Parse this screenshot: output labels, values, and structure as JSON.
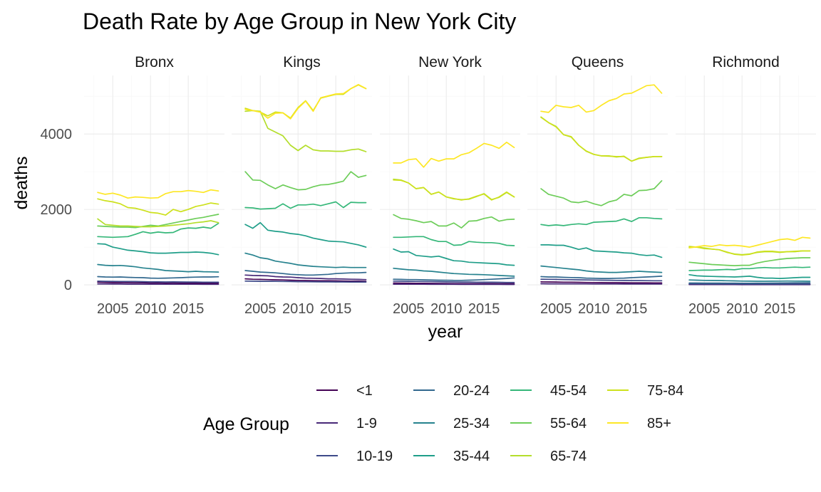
{
  "chart_data": {
    "type": "line",
    "title": "Death Rate by Age Group in New York City",
    "xlabel": "year",
    "ylabel": "deaths",
    "facets": [
      "Bronx",
      "Kings",
      "New York",
      "Queens",
      "Richmond"
    ],
    "x": [
      2003,
      2004,
      2005,
      2006,
      2007,
      2008,
      2009,
      2010,
      2011,
      2012,
      2013,
      2014,
      2015,
      2016,
      2017,
      2018,
      2019
    ],
    "xlim": [
      2001.2,
      2019.8
    ],
    "ylim": [
      -130,
      5550
    ],
    "xticks": [
      2005,
      2010,
      2015
    ],
    "yticks": [
      0,
      2000,
      4000
    ],
    "legend": {
      "title": "Age Group",
      "position": "bottom",
      "entries": [
        "<1",
        "1-9",
        "10-19",
        "20-24",
        "25-34",
        "35-44",
        "45-54",
        "55-64",
        "65-74",
        "75-84",
        "85+"
      ]
    },
    "colors": {
      "<1": "#440154",
      "1-9": "#482878",
      "10-19": "#3E4A89",
      "20-24": "#31688E",
      "25-34": "#26828E",
      "35-44": "#1F9E89",
      "45-54": "#35B779",
      "55-64": "#6DCD59",
      "65-74": "#B4DE2C",
      "75-84": "#CDE11D",
      "85+": "#FDE725"
    },
    "series": {
      "Bronx": {
        "<1": [
          70,
          65,
          60,
          62,
          58,
          55,
          55,
          50,
          52,
          48,
          50,
          48,
          45,
          48,
          45,
          45,
          45
        ],
        "1-9": [
          25,
          24,
          22,
          22,
          20,
          20,
          20,
          19,
          18,
          18,
          18,
          17,
          17,
          17,
          16,
          16,
          16
        ],
        "10-19": [
          100,
          95,
          92,
          90,
          90,
          88,
          85,
          82,
          80,
          78,
          80,
          78,
          75,
          75,
          72,
          72,
          70
        ],
        "20-24": [
          220,
          210,
          205,
          210,
          200,
          195,
          190,
          180,
          175,
          180,
          185,
          190,
          200,
          205,
          210,
          210,
          215
        ],
        "25-34": [
          540,
          520,
          510,
          515,
          500,
          480,
          450,
          430,
          410,
          380,
          370,
          360,
          350,
          360,
          350,
          345,
          340
        ],
        "35-44": [
          1090,
          1080,
          1000,
          960,
          920,
          900,
          880,
          850,
          840,
          840,
          850,
          860,
          860,
          870,
          860,
          840,
          800
        ],
        "45-54": [
          1280,
          1270,
          1260,
          1270,
          1280,
          1340,
          1410,
          1370,
          1400,
          1380,
          1390,
          1480,
          1510,
          1500,
          1530,
          1500,
          1630
        ],
        "55-64": [
          1560,
          1550,
          1540,
          1530,
          1530,
          1520,
          1550,
          1580,
          1560,
          1600,
          1640,
          1680,
          1720,
          1760,
          1790,
          1830,
          1870
        ],
        "65-74": [
          1750,
          1600,
          1580,
          1560,
          1560,
          1550,
          1540,
          1540,
          1550,
          1560,
          1580,
          1600,
          1620,
          1650,
          1670,
          1700,
          1650
        ],
        "75-84": [
          2280,
          2230,
          2200,
          2150,
          2050,
          2030,
          1980,
          1920,
          1900,
          1850,
          2000,
          1940,
          2000,
          2080,
          2120,
          2170,
          2140
        ],
        "85+": [
          2450,
          2400,
          2430,
          2380,
          2300,
          2330,
          2320,
          2300,
          2310,
          2420,
          2470,
          2470,
          2500,
          2480,
          2450,
          2520,
          2490
        ]
      },
      "Kings": {
        "<1": [
          160,
          150,
          145,
          140,
          135,
          130,
          125,
          120,
          115,
          112,
          110,
          108,
          105,
          102,
          100,
          98,
          95
        ],
        "1-9": [
          260,
          250,
          245,
          240,
          220,
          210,
          205,
          190,
          180,
          175,
          170,
          160,
          160,
          155,
          150,
          145,
          140
        ],
        "10-19": [
          100,
          98,
          95,
          95,
          92,
          90,
          88,
          85,
          83,
          82,
          80,
          80,
          78,
          78,
          76,
          75,
          75
        ],
        "20-24": [
          380,
          360,
          340,
          330,
          320,
          300,
          280,
          270,
          260,
          260,
          270,
          280,
          300,
          310,
          320,
          320,
          330
        ],
        "25-34": [
          840,
          790,
          720,
          690,
          630,
          600,
          570,
          530,
          510,
          490,
          480,
          470,
          460,
          470,
          460,
          460,
          460
        ],
        "35-44": [
          1600,
          1500,
          1650,
          1450,
          1420,
          1400,
          1360,
          1340,
          1300,
          1240,
          1200,
          1160,
          1150,
          1140,
          1100,
          1060,
          1000
        ],
        "45-54": [
          2050,
          2040,
          2010,
          2020,
          2030,
          2150,
          2030,
          2120,
          2120,
          2140,
          2100,
          2150,
          2200,
          2050,
          2190,
          2180,
          2180
        ],
        "55-64": [
          3000,
          2780,
          2770,
          2650,
          2550,
          2650,
          2580,
          2520,
          2530,
          2600,
          2650,
          2660,
          2700,
          2750,
          3000,
          2850,
          2900
        ],
        "65-74": [
          4600,
          4620,
          4600,
          4150,
          4050,
          3950,
          3700,
          3560,
          3700,
          3580,
          3550,
          3550,
          3540,
          3540,
          3580,
          3600,
          3530
        ],
        "75-84": [
          4680,
          4620,
          4580,
          4480,
          4580,
          4560,
          4420,
          4700,
          4880,
          4620,
          4950,
          5000,
          5050,
          5050,
          5200,
          5300,
          5200
        ],
        "85+": [
          4650,
          4620,
          4580,
          4420,
          4550,
          4560,
          4400,
          4680,
          4870,
          4600,
          4960,
          5010,
          5060,
          5070,
          5200,
          5310,
          5200
        ]
      },
      "New York": {
        "<1": [
          50,
          48,
          45,
          44,
          42,
          40,
          38,
          36,
          35,
          34,
          34,
          33,
          32,
          32,
          31,
          30,
          30
        ],
        "1-9": [
          20,
          19,
          18,
          18,
          17,
          16,
          16,
          15,
          15,
          14,
          14,
          14,
          13,
          13,
          13,
          12,
          12
        ],
        "10-19": [
          100,
          98,
          95,
          92,
          90,
          88,
          85,
          80,
          78,
          75,
          75,
          72,
          70,
          70,
          68,
          65,
          65
        ],
        "20-24": [
          150,
          145,
          140,
          140,
          135,
          130,
          125,
          122,
          120,
          120,
          125,
          130,
          140,
          150,
          160,
          170,
          185
        ],
        "25-34": [
          440,
          420,
          400,
          390,
          370,
          360,
          340,
          320,
          300,
          290,
          280,
          275,
          270,
          260,
          250,
          240,
          230
        ],
        "35-44": [
          950,
          870,
          880,
          780,
          760,
          740,
          760,
          700,
          640,
          630,
          600,
          590,
          580,
          570,
          560,
          530,
          520
        ],
        "45-54": [
          1260,
          1260,
          1270,
          1280,
          1280,
          1200,
          1150,
          1150,
          1050,
          1060,
          1150,
          1130,
          1120,
          1120,
          1100,
          1050,
          1040
        ],
        "55-64": [
          1860,
          1760,
          1740,
          1700,
          1650,
          1680,
          1560,
          1560,
          1640,
          1510,
          1690,
          1700,
          1760,
          1800,
          1690,
          1730,
          1740
        ],
        "65-74": [
          2800,
          2780,
          2700,
          2550,
          2580,
          2400,
          2460,
          2330,
          2280,
          2260,
          2270,
          2340,
          2420,
          2260,
          2320,
          2450,
          2330
        ],
        "75-84": [
          2780,
          2770,
          2700,
          2550,
          2580,
          2400,
          2460,
          2330,
          2290,
          2250,
          2280,
          2350,
          2410,
          2250,
          2330,
          2460,
          2330
        ],
        "85+": [
          3230,
          3230,
          3320,
          3340,
          3120,
          3350,
          3280,
          3340,
          3340,
          3450,
          3500,
          3620,
          3750,
          3700,
          3620,
          3780,
          3640
        ]
      },
      "Queens": {
        "<1": [
          80,
          78,
          75,
          72,
          70,
          68,
          65,
          62,
          60,
          58,
          58,
          56,
          55,
          55,
          54,
          52,
          52
        ],
        "1-9": [
          30,
          29,
          28,
          28,
          27,
          26,
          26,
          25,
          25,
          24,
          24,
          23,
          23,
          23,
          22,
          22,
          22
        ],
        "10-19": [
          150,
          148,
          145,
          140,
          138,
          135,
          130,
          128,
          125,
          122,
          120,
          118,
          115,
          115,
          112,
          110,
          110
        ],
        "20-24": [
          220,
          210,
          210,
          200,
          195,
          190,
          180,
          175,
          170,
          170,
          175,
          180,
          190,
          200,
          210,
          220,
          230
        ],
        "25-34": [
          500,
          480,
          460,
          440,
          420,
          400,
          370,
          350,
          340,
          330,
          330,
          340,
          350,
          360,
          350,
          340,
          330
        ],
        "35-44": [
          1060,
          1060,
          1050,
          1050,
          1000,
          940,
          980,
          900,
          890,
          880,
          870,
          850,
          840,
          800,
          780,
          790,
          730
        ],
        "45-54": [
          1600,
          1570,
          1590,
          1570,
          1600,
          1620,
          1600,
          1660,
          1670,
          1680,
          1690,
          1750,
          1680,
          1780,
          1780,
          1760,
          1750
        ],
        "55-64": [
          2550,
          2400,
          2350,
          2300,
          2200,
          2180,
          2220,
          2150,
          2100,
          2200,
          2250,
          2400,
          2360,
          2500,
          2510,
          2550,
          2760
        ],
        "65-74": [
          4450,
          4300,
          4200,
          3980,
          3920,
          3700,
          3540,
          3460,
          3420,
          3420,
          3390,
          3410,
          3280,
          3360,
          3380,
          3400,
          3400
        ],
        "75-84": [
          4440,
          4300,
          4190,
          3980,
          3930,
          3700,
          3550,
          3460,
          3420,
          3410,
          3400,
          3400,
          3280,
          3350,
          3380,
          3400,
          3400
        ],
        "85+": [
          4600,
          4570,
          4760,
          4720,
          4700,
          4760,
          4580,
          4620,
          4760,
          4880,
          4940,
          5060,
          5080,
          5180,
          5280,
          5300,
          5080
        ]
      },
      "Richmond": {
        "<1": [
          15,
          15,
          14,
          14,
          13,
          13,
          12,
          12,
          12,
          11,
          11,
          11,
          10,
          10,
          10,
          10,
          10
        ],
        "1-9": [
          8,
          8,
          8,
          7,
          7,
          7,
          7,
          6,
          6,
          6,
          6,
          6,
          6,
          5,
          5,
          5,
          5
        ],
        "10-19": [
          30,
          30,
          29,
          28,
          28,
          27,
          26,
          26,
          25,
          25,
          24,
          24,
          23,
          23,
          22,
          22,
          22
        ],
        "20-24": [
          50,
          50,
          48,
          48,
          47,
          46,
          45,
          44,
          44,
          45,
          46,
          48,
          50,
          52,
          54,
          55,
          56
        ],
        "25-34": [
          130,
          125,
          120,
          118,
          115,
          110,
          105,
          100,
          98,
          96,
          96,
          98,
          100,
          102,
          100,
          98,
          96
        ],
        "35-44": [
          270,
          240,
          230,
          225,
          220,
          215,
          210,
          220,
          230,
          200,
          180,
          180,
          170,
          180,
          190,
          200,
          200
        ],
        "45-54": [
          380,
          385,
          390,
          390,
          400,
          410,
          400,
          430,
          430,
          450,
          460,
          450,
          450,
          460,
          470,
          460,
          470
        ],
        "55-64": [
          600,
          580,
          560,
          540,
          530,
          520,
          510,
          520,
          520,
          580,
          620,
          650,
          680,
          700,
          710,
          720,
          720
        ],
        "65-74": [
          1000,
          1000,
          980,
          950,
          930,
          860,
          820,
          800,
          820,
          860,
          880,
          880,
          860,
          880,
          880,
          900,
          900
        ],
        "75-84": [
          1020,
          1000,
          960,
          950,
          930,
          870,
          810,
          790,
          810,
          870,
          890,
          890,
          870,
          880,
          890,
          900,
          900
        ],
        "85+": [
          980,
          1010,
          1040,
          1020,
          1060,
          1040,
          1050,
          1030,
          1000,
          1050,
          1100,
          1150,
          1200,
          1220,
          1180,
          1260,
          1240
        ]
      }
    }
  }
}
